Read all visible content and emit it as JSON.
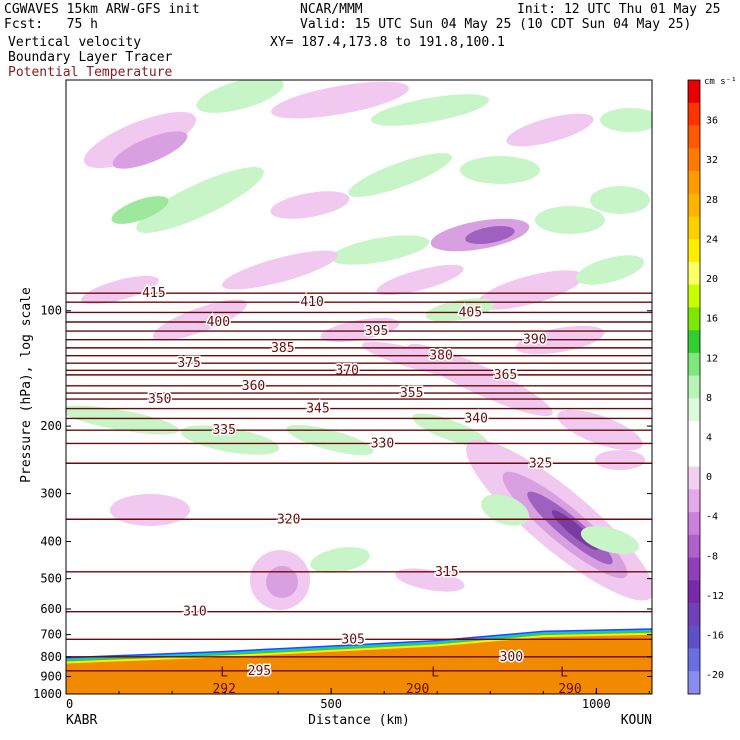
{
  "header": {
    "model": "CGWAVES 15km ARW-GFS init",
    "org": "NCAR/MMM",
    "init": "Init: 12 UTC Thu 01 May 25",
    "fcst": "Fcst:   75 h",
    "valid": "Valid: 15 UTC Sun 04 May 25 (10 CDT Sun 04 May 25)",
    "field1": "Vertical velocity",
    "field2": "Boundary Layer Tracer",
    "field3": "Potential Temperature",
    "xy": "XY= 187.4,173.8 to 191.8,100.1"
  },
  "colors": {
    "theta": "#6b0a0a",
    "field3_text": "#8b1a1a",
    "terrain": "#f28a00",
    "pos_light": "#c8f5c8",
    "pos_mid": "#9ee89e",
    "neg_light": "#f0c8f0",
    "neg_mid": "#d8a0e0",
    "neg_dark": "#a060c0",
    "neg_darker": "#7a3aa0"
  },
  "chart_data": {
    "type": "contour cross-section",
    "xlabel": "Distance (km)",
    "ylabel": "Pressure (hPa), log scale",
    "x_ticks": [
      0,
      500,
      1000
    ],
    "xlim": [
      0,
      1105
    ],
    "y_ticks": [
      100,
      200,
      300,
      400,
      500,
      600,
      700,
      800,
      900,
      1000
    ],
    "ylim": [
      1000,
      25
    ],
    "y_scale": "log",
    "endpoints": {
      "left": "KABR",
      "right": "KOUN"
    },
    "colorbar": {
      "unit": "cm s⁻¹",
      "labels": [
        36,
        32,
        28,
        24,
        20,
        16,
        12,
        8,
        4,
        0,
        -4,
        -8,
        -12,
        -16,
        -20
      ],
      "colors": [
        "#e60000",
        "#ff3300",
        "#ff5a00",
        "#ff7a00",
        "#ff9a00",
        "#ffb400",
        "#ffd000",
        "#ffee00",
        "#ffff66",
        "#c8ff00",
        "#7fe600",
        "#33cc33",
        "#7ee87e",
        "#b8f4b8",
        "#dcfadc",
        "#ffffff",
        "#ffffff",
        "#f2d0f2",
        "#e4a8ec",
        "#cc80dc",
        "#b060cc",
        "#9040b8",
        "#7a2aa8",
        "#7040b8",
        "#6050c8",
        "#6a6ee0",
        "#8a8cf0"
      ]
    },
    "theta_contours": [
      {
        "theta": 415,
        "points": [
          [
            0,
            90
          ],
          [
            500,
            90
          ],
          [
            1105,
            90
          ]
        ]
      },
      {
        "theta": 410,
        "points": [
          [
            0,
            95
          ],
          [
            500,
            95
          ],
          [
            1105,
            95
          ]
        ]
      },
      {
        "theta": 405,
        "points": [
          [
            0,
            101
          ],
          [
            500,
            101
          ],
          [
            1105,
            101
          ]
        ]
      },
      {
        "theta": 400,
        "points": [
          [
            0,
            107
          ],
          [
            500,
            107
          ],
          [
            1105,
            107
          ]
        ]
      },
      {
        "theta": 395,
        "points": [
          [
            0,
            113
          ],
          [
            500,
            113
          ],
          [
            1105,
            113
          ]
        ]
      },
      {
        "theta": 390,
        "points": [
          [
            0,
            119
          ],
          [
            500,
            119
          ],
          [
            1105,
            119
          ]
        ]
      },
      {
        "theta": 385,
        "points": [
          [
            0,
            125
          ],
          [
            500,
            125
          ],
          [
            1105,
            125
          ]
        ]
      },
      {
        "theta": 380,
        "points": [
          [
            0,
            131
          ],
          [
            500,
            131
          ],
          [
            1105,
            131
          ]
        ]
      },
      {
        "theta": 375,
        "points": [
          [
            0,
            137
          ],
          [
            500,
            137
          ],
          [
            1105,
            137
          ]
        ]
      },
      {
        "theta": 370,
        "points": [
          [
            0,
            143
          ],
          [
            500,
            143
          ],
          [
            1105,
            143
          ]
        ]
      },
      {
        "theta": 365,
        "points": [
          [
            0,
            147
          ],
          [
            500,
            147
          ],
          [
            1105,
            147
          ]
        ]
      },
      {
        "theta": 360,
        "points": [
          [
            0,
            157
          ],
          [
            500,
            157
          ],
          [
            1105,
            157
          ]
        ]
      },
      {
        "theta": 355,
        "points": [
          [
            0,
            164
          ],
          [
            500,
            164
          ],
          [
            1105,
            164
          ]
        ]
      },
      {
        "theta": 350,
        "points": [
          [
            0,
            170
          ],
          [
            500,
            170
          ],
          [
            1105,
            170
          ]
        ]
      },
      {
        "theta": 345,
        "points": [
          [
            0,
            180
          ],
          [
            500,
            180
          ],
          [
            1105,
            180
          ]
        ]
      },
      {
        "theta": 340,
        "points": [
          [
            0,
            191
          ],
          [
            500,
            191
          ],
          [
            1105,
            191
          ]
        ]
      },
      {
        "theta": 335,
        "points": [
          [
            0,
            205
          ],
          [
            500,
            205
          ],
          [
            1105,
            205
          ]
        ]
      },
      {
        "theta": 330,
        "points": [
          [
            0,
            222
          ],
          [
            500,
            222
          ],
          [
            1105,
            222
          ]
        ]
      },
      {
        "theta": 325,
        "points": [
          [
            0,
            250
          ],
          [
            500,
            250
          ],
          [
            1105,
            250
          ]
        ]
      },
      {
        "theta": 320,
        "points": [
          [
            0,
            350
          ],
          [
            500,
            350
          ],
          [
            1105,
            350
          ]
        ]
      },
      {
        "theta": 315,
        "points": [
          [
            0,
            480
          ],
          [
            500,
            480
          ],
          [
            1105,
            480
          ]
        ]
      },
      {
        "theta": 310,
        "points": [
          [
            0,
            610
          ],
          [
            500,
            610
          ],
          [
            1105,
            610
          ]
        ]
      },
      {
        "theta": 305,
        "points": [
          [
            0,
            720
          ],
          [
            500,
            720
          ],
          [
            1105,
            720
          ]
        ]
      },
      {
        "theta": 300,
        "points": [
          [
            0,
            800
          ],
          [
            500,
            800
          ],
          [
            1105,
            800
          ]
        ]
      },
      {
        "theta": 295,
        "points": [
          [
            0,
            870
          ],
          [
            500,
            870
          ],
          [
            1105,
            870
          ]
        ]
      }
    ],
    "terrain_profile": [
      [
        0,
        820
      ],
      [
        300,
        790
      ],
      [
        700,
        740
      ],
      [
        900,
        700
      ],
      [
        1105,
        690
      ]
    ],
    "pbl_tracer_labels": [
      "L",
      "L",
      "L"
    ],
    "terrain_labels": [
      292,
      290,
      290
    ]
  }
}
